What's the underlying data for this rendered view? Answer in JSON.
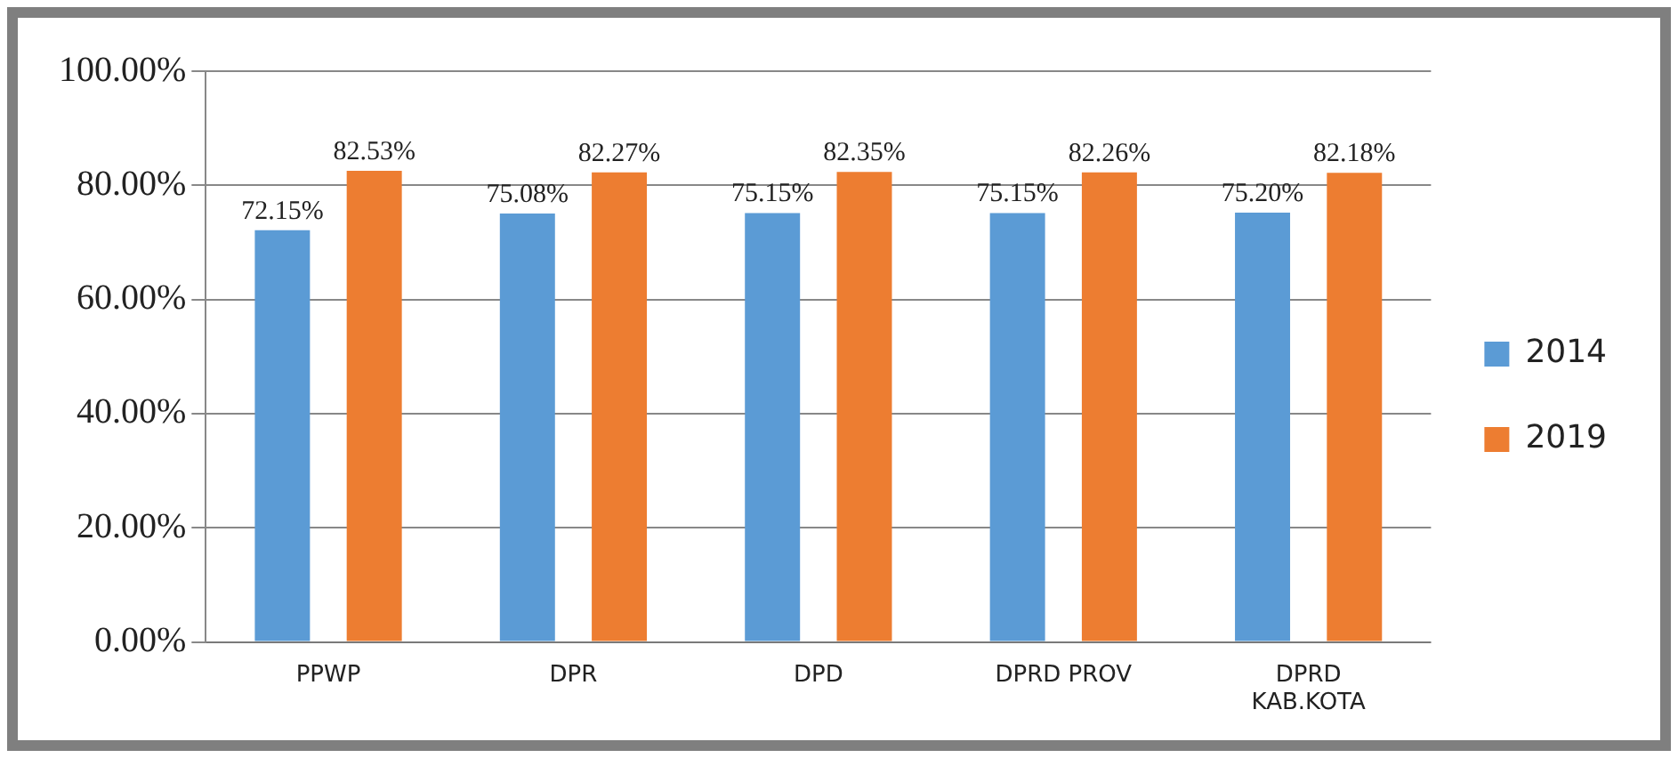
{
  "chart_data": {
    "type": "bar",
    "categories": [
      "PPWP",
      "DPR",
      "DPD",
      "DPRD PROV",
      "DPRD KAB.KOTA"
    ],
    "series": [
      {
        "name": "2014",
        "color": "#5b9bd5",
        "values": [
          72.15,
          75.08,
          75.15,
          75.15,
          75.2
        ],
        "value_labels": [
          "72.15%",
          "75.08%",
          "75.15%",
          "75.15%",
          "75.20%"
        ]
      },
      {
        "name": "2019",
        "color": "#ed7d31",
        "values": [
          82.53,
          82.27,
          82.35,
          82.26,
          82.18
        ],
        "value_labels": [
          "82.53%",
          "82.27%",
          "82.35%",
          "82.26%",
          "82.18%"
        ]
      }
    ],
    "ylim": [
      0,
      100
    ],
    "yticks": [
      {
        "value": 0,
        "label": "0.00%"
      },
      {
        "value": 20,
        "label": "20.00%"
      },
      {
        "value": 40,
        "label": "40.00%"
      },
      {
        "value": 60,
        "label": "60.00%"
      },
      {
        "value": 80,
        "label": "80.00%"
      },
      {
        "value": 100,
        "label": "100.00%"
      }
    ],
    "grid": "y",
    "legend": "right"
  }
}
